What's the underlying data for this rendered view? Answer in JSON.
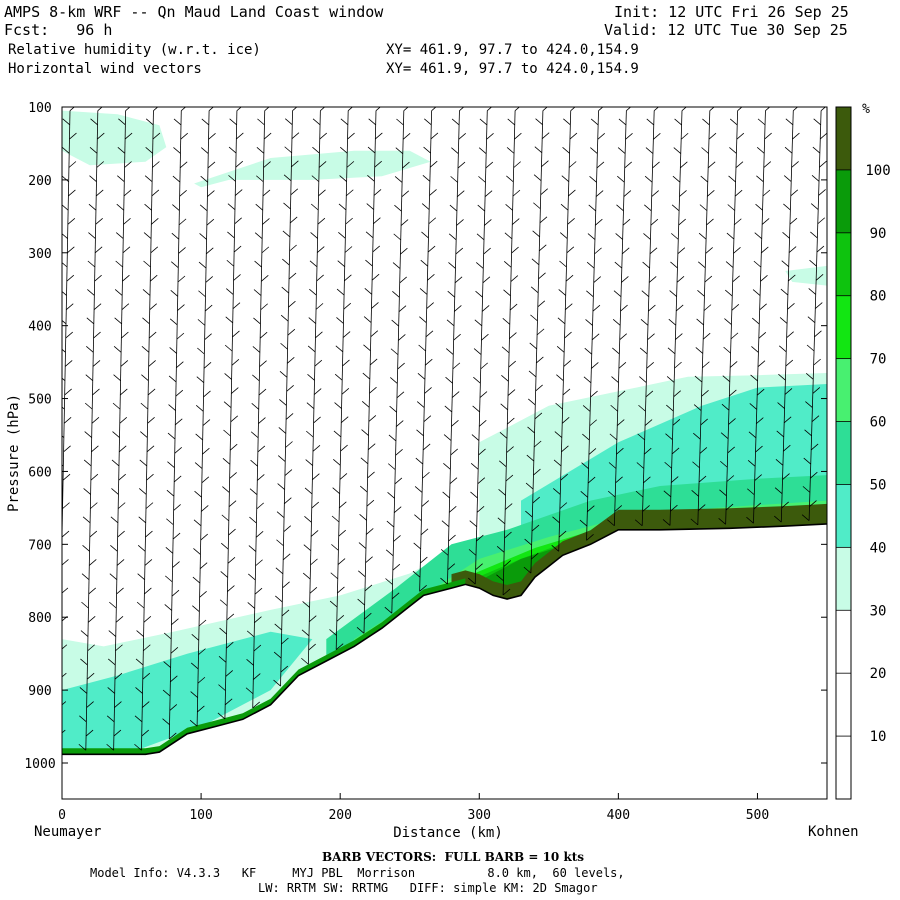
{
  "header": {
    "title": "AMPS 8-km WRF -- Qn Maud Land Coast window",
    "fcst": "Fcst:   96 h",
    "init": "Init: 12 UTC Fri 26 Sep 25",
    "valid": "Valid: 12 UTC Tue 30 Sep 25",
    "field1": "Relative humidity (w.r.t. ice)",
    "field2": "Horizontal wind vectors",
    "xy1": "XY= 461.9, 97.7 to 424.0,154.9",
    "xy2": "XY= 461.9, 97.7 to 424.0,154.9"
  },
  "footer": {
    "barb": "BARB VECTORS:  FULL BARB = 10 kts",
    "model_line1": "Model Info: V4.3.3   KF     MYJ PBL  Morrison          8.0 km,  60 levels,",
    "model_line2": "LW: RRTM SW: RRTMG   DIFF: simple KM: 2D Smagor"
  },
  "endpoints": {
    "left": "Neumayer",
    "right": "Kohnen"
  },
  "colors": {
    "c30_40": "#c8fce6",
    "c40_50": "#50ecc8",
    "c50_60": "#2ede96",
    "c60_70": "#48f070",
    "c70_80": "#12e612",
    "c80_90": "#0ec30e",
    "c90_100": "#0a9b0a",
    "c100": "#3c5a0c"
  },
  "chart_data": {
    "type": "heatmap",
    "title": "Relative humidity (w.r.t. ice)",
    "xlabel": "Distance (km)",
    "ylabel": "Pressure (hPa)",
    "xlim": [
      0,
      550
    ],
    "ylim": [
      1050,
      100
    ],
    "x_ticks": [
      0,
      100,
      200,
      300,
      400,
      500
    ],
    "y_ticks": [
      100,
      200,
      300,
      400,
      500,
      600,
      700,
      800,
      900,
      1000
    ],
    "colorbar": {
      "unit": "%",
      "levels": [
        10,
        20,
        30,
        40,
        50,
        60,
        70,
        80,
        90,
        100
      ],
      "color_keys": [
        "white",
        "white",
        "white",
        "c30_40",
        "c40_50",
        "c50_60",
        "c60_70",
        "c70_80",
        "c80_90",
        "c90_100",
        "c100"
      ]
    },
    "terrain": {
      "distance_km": [
        0,
        30,
        60,
        70,
        90,
        110,
        130,
        150,
        170,
        190,
        210,
        230,
        250,
        260,
        280,
        290,
        300,
        310,
        320,
        330,
        340,
        350,
        360,
        380,
        400,
        430,
        480,
        520,
        550
      ],
      "surface_pressure_hPa": [
        988,
        988,
        988,
        985,
        960,
        950,
        940,
        920,
        880,
        860,
        840,
        815,
        785,
        770,
        760,
        755,
        760,
        770,
        775,
        770,
        745,
        730,
        715,
        700,
        680,
        680,
        678,
        675,
        672
      ]
    },
    "rh_regions": [
      {
        "rh_band": "30-40",
        "distance_km": [
          0,
          40,
          70,
          75,
          60,
          20,
          0
        ],
        "pressure_hPa": [
          105,
          110,
          125,
          155,
          175,
          180,
          160
        ]
      },
      {
        "rh_band": "30-40",
        "distance_km": [
          95,
          150,
          210,
          250,
          265,
          230,
          180,
          120,
          100
        ],
        "pressure_hPa": [
          205,
          170,
          160,
          160,
          175,
          195,
          200,
          200,
          210
        ]
      },
      {
        "rh_band": "30-40",
        "distance_km": [
          520,
          550,
          550,
          525
        ],
        "pressure_hPa": [
          325,
          318,
          345,
          340
        ]
      },
      {
        "rh_band": "30-40",
        "distance_km": [
          300,
          350,
          400,
          450,
          500,
          550,
          550,
          400,
          330,
          300
        ],
        "pressure_hPa": [
          560,
          510,
          490,
          470,
          468,
          465,
          690,
          690,
          700,
          700
        ]
      },
      {
        "rh_band": "30-40",
        "distance_km": [
          0,
          30,
          80,
          150,
          200,
          250,
          290,
          300,
          300,
          230,
          150,
          60,
          0
        ],
        "pressure_hPa": [
          830,
          840,
          820,
          790,
          770,
          740,
          700,
          700,
          790,
          840,
          955,
          990,
          990
        ]
      },
      {
        "rh_band": "40-50",
        "distance_km": [
          0,
          40,
          90,
          150,
          180,
          150,
          100,
          50,
          0
        ],
        "pressure_hPa": [
          900,
          880,
          850,
          820,
          830,
          900,
          950,
          985,
          985
        ]
      },
      {
        "rh_band": "40-50",
        "distance_km": [
          330,
          400,
          460,
          500,
          550,
          550,
          330
        ],
        "pressure_hPa": [
          640,
          560,
          510,
          485,
          480,
          690,
          690
        ]
      },
      {
        "rh_band": "50-60",
        "distance_km": [
          190,
          240,
          280,
          320,
          380,
          430,
          500,
          550,
          550,
          190
        ],
        "pressure_hPa": [
          830,
          760,
          700,
          680,
          640,
          620,
          610,
          605,
          690,
          860
        ]
      },
      {
        "rh_band": "60-70",
        "distance_km": [
          210,
          260,
          300,
          350,
          400,
          470,
          550,
          550,
          210
        ],
        "pressure_hPa": [
          830,
          770,
          720,
          690,
          665,
          650,
          640,
          690,
          850
        ]
      },
      {
        "rh_band": "70-80",
        "distance_km": [
          240,
          290,
          340,
          400,
          480,
          550,
          550,
          240
        ],
        "pressure_hPa": [
          800,
          745,
          705,
          670,
          655,
          650,
          690,
          810
        ]
      },
      {
        "rh_band": "80-90",
        "distance_km": [
          280,
          330,
          380,
          450,
          550,
          550,
          280
        ],
        "pressure_hPa": [
          760,
          720,
          685,
          665,
          660,
          690,
          780
        ]
      },
      {
        "rh_band": "90-100",
        "distance_km": [
          290,
          330,
          380,
          450,
          550,
          550,
          290
        ],
        "pressure_hPa": [
          760,
          720,
          690,
          670,
          668,
          690,
          780
        ]
      }
    ],
    "barbs": {
      "distance_km": [
        0,
        20,
        40,
        60,
        80,
        100,
        120,
        140,
        160,
        180,
        200,
        220,
        240,
        260,
        280,
        300,
        320,
        340,
        360,
        380,
        400,
        420,
        440,
        460,
        480,
        500,
        520,
        540
      ],
      "full_barb_kts": 10
    }
  }
}
